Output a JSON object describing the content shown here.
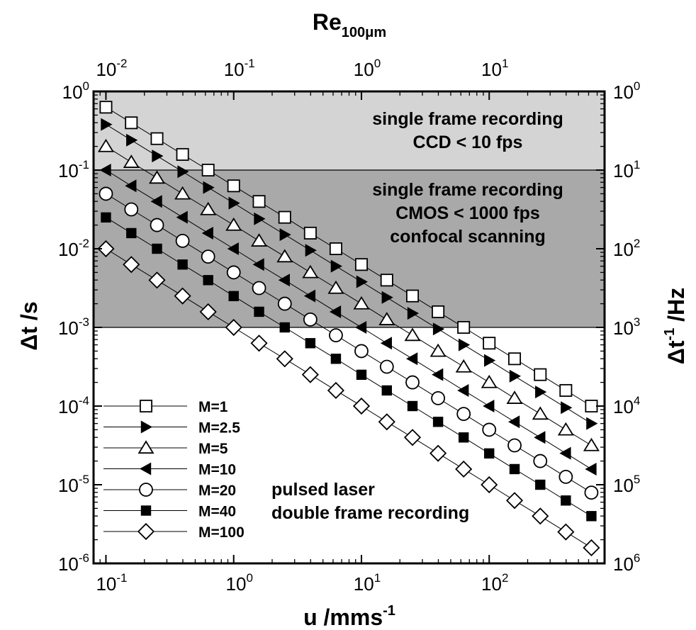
{
  "chart_data": {
    "type": "scatter",
    "title": "",
    "xlabel": "u /mms",
    "xlabel_sup": "-1",
    "ylabel": "Δt /s",
    "y2label": "Δt",
    "y2label_sup": "-1",
    "y2label_suffix": " /Hz",
    "x2label": "Re",
    "x2label_sub": "100μm",
    "xscale": "log",
    "yscale": "log",
    "xlim": [
      0.08,
      800
    ],
    "ylim": [
      1e-06,
      1
    ],
    "x_ticks": [
      {
        "value": 0.1,
        "base": "10",
        "exp": "-1"
      },
      {
        "value": 1,
        "base": "10",
        "exp": "0"
      },
      {
        "value": 10,
        "base": "10",
        "exp": "1"
      },
      {
        "value": 100,
        "base": "10",
        "exp": "2"
      }
    ],
    "x2_ticks": [
      {
        "value": 0.1,
        "base": "10",
        "exp": "-2"
      },
      {
        "value": 1,
        "base": "10",
        "exp": "-1"
      },
      {
        "value": 10,
        "base": "10",
        "exp": "0"
      },
      {
        "value": 100,
        "base": "10",
        "exp": "1"
      }
    ],
    "y_ticks": [
      {
        "value": 1,
        "base": "10",
        "exp": "0"
      },
      {
        "value": 0.1,
        "base": "10",
        "exp": "-1"
      },
      {
        "value": 0.01,
        "base": "10",
        "exp": "-2"
      },
      {
        "value": 0.001,
        "base": "10",
        "exp": "-3"
      },
      {
        "value": 0.0001,
        "base": "10",
        "exp": "-4"
      },
      {
        "value": 1e-05,
        "base": "10",
        "exp": "-5"
      },
      {
        "value": 1e-06,
        "base": "10",
        "exp": "-6"
      }
    ],
    "y2_ticks": [
      {
        "value": 1,
        "base": "10",
        "exp": "0"
      },
      {
        "value": 0.1,
        "base": "10",
        "exp": "1"
      },
      {
        "value": 0.01,
        "base": "10",
        "exp": "2"
      },
      {
        "value": 0.001,
        "base": "10",
        "exp": "3"
      },
      {
        "value": 0.0001,
        "base": "10",
        "exp": "4"
      },
      {
        "value": 1e-05,
        "base": "10",
        "exp": "5"
      },
      {
        "value": 1e-06,
        "base": "10",
        "exp": "6"
      }
    ],
    "regions": [
      {
        "y_from": 0.1,
        "y_to": 1,
        "color": "#d4d4d4",
        "lines": [
          "single frame recording",
          "CCD < 10 fps"
        ]
      },
      {
        "y_from": 0.001,
        "y_to": 0.1,
        "color": "#a9a9a9",
        "lines": [
          "single frame recording",
          "CMOS < 1000 fps",
          "confocal scanning"
        ]
      },
      {
        "y_from": 1e-06,
        "y_to": 0.001,
        "color": "#ffffff",
        "lines": [
          "pulsed laser",
          "double frame recording"
        ]
      }
    ],
    "x": [
      0.1,
      0.158,
      0.251,
      0.398,
      0.631,
      1,
      1.58,
      2.51,
      3.98,
      6.31,
      10,
      15.8,
      25.1,
      39.8,
      63.1,
      100,
      158,
      251,
      398,
      631
    ],
    "series": [
      {
        "name": "M=1",
        "marker": "square-open",
        "y": [
          0.63,
          0.399,
          0.251,
          0.158,
          0.1,
          0.063,
          0.0399,
          0.0251,
          0.0158,
          0.01,
          0.0063,
          0.00399,
          0.00251,
          0.00158,
          0.001,
          0.00063,
          0.000399,
          0.000251,
          0.000158,
          0.0001
        ]
      },
      {
        "name": "M=2.5",
        "marker": "triangle-right-filled",
        "y": [
          0.38,
          0.24,
          0.151,
          0.0955,
          0.06,
          0.038,
          0.024,
          0.0151,
          0.00955,
          0.006,
          0.0038,
          0.0024,
          0.00151,
          0.000955,
          0.0006,
          0.00038,
          0.00024,
          0.000151,
          9.55e-05,
          6e-05
        ]
      },
      {
        "name": "M=5",
        "marker": "triangle-up-open",
        "y": [
          0.2,
          0.126,
          0.0794,
          0.05,
          0.0316,
          0.02,
          0.0126,
          0.00794,
          0.005,
          0.00316,
          0.002,
          0.00126,
          0.000794,
          0.0005,
          0.000316,
          0.0002,
          0.000126,
          7.94e-05,
          5e-05,
          3.16e-05
        ]
      },
      {
        "name": "M=10",
        "marker": "triangle-left-filled",
        "y": [
          0.1,
          0.063,
          0.0399,
          0.0251,
          0.0158,
          0.01,
          0.0063,
          0.00399,
          0.00251,
          0.00158,
          0.001,
          0.00063,
          0.000399,
          0.000251,
          0.000158,
          0.0001,
          6.3e-05,
          3.99e-05,
          2.51e-05,
          1.58e-05
        ]
      },
      {
        "name": "M=20",
        "marker": "circle-open",
        "y": [
          0.05,
          0.0316,
          0.02,
          0.0126,
          0.00794,
          0.005,
          0.00316,
          0.002,
          0.00126,
          0.000794,
          0.0005,
          0.000316,
          0.0002,
          0.000126,
          7.94e-05,
          5e-05,
          3.16e-05,
          2e-05,
          1.26e-05,
          7.94e-06
        ]
      },
      {
        "name": "M=40",
        "marker": "square-filled",
        "y": [
          0.025,
          0.0158,
          0.01,
          0.0063,
          0.00399,
          0.0025,
          0.00158,
          0.001,
          0.00063,
          0.000399,
          0.00025,
          0.000158,
          0.0001,
          6.3e-05,
          3.99e-05,
          2.5e-05,
          1.58e-05,
          1e-05,
          6.3e-06,
          3.99e-06
        ]
      },
      {
        "name": "M=100",
        "marker": "diamond-open",
        "y": [
          0.01,
          0.0063,
          0.00399,
          0.00251,
          0.00158,
          0.001,
          0.00063,
          0.000399,
          0.000251,
          0.000158,
          0.0001,
          6.3e-05,
          3.99e-05,
          2.51e-05,
          1.58e-05,
          1e-05,
          6.3e-06,
          3.99e-06,
          2.51e-06,
          1.58e-06
        ]
      }
    ],
    "legend": {
      "position": "bottom-left"
    },
    "grid": false
  }
}
